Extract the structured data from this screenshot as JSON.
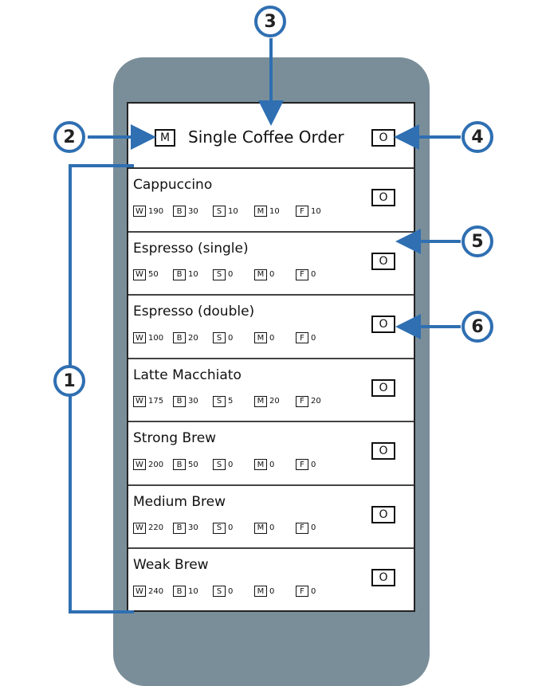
{
  "header": {
    "menu_icon": "M",
    "title": "Single Coffee Order",
    "order_icon": "O"
  },
  "ingredient_keys": [
    "W",
    "B",
    "S",
    "M",
    "F"
  ],
  "drinks": [
    {
      "name": "Cappuccino",
      "values": [
        "190",
        "30",
        "10",
        "10",
        "10"
      ],
      "button": "O"
    },
    {
      "name": "Espresso (single)",
      "values": [
        "50",
        "10",
        "0",
        "0",
        "0"
      ],
      "button": "O"
    },
    {
      "name": "Espresso (double)",
      "values": [
        "100",
        "20",
        "0",
        "0",
        "0"
      ],
      "button": "O"
    },
    {
      "name": "Latte Macchiato",
      "values": [
        "175",
        "30",
        "5",
        "20",
        "20"
      ],
      "button": "O"
    },
    {
      "name": "Strong Brew",
      "values": [
        "200",
        "50",
        "0",
        "0",
        "0"
      ],
      "button": "O"
    },
    {
      "name": "Medium Brew",
      "values": [
        "220",
        "30",
        "0",
        "0",
        "0"
      ],
      "button": "O"
    },
    {
      "name": "Weak Brew",
      "values": [
        "240",
        "10",
        "0",
        "0",
        "0"
      ],
      "button": "O"
    }
  ],
  "callouts": [
    "1",
    "2",
    "3",
    "4",
    "5",
    "6"
  ],
  "colors": {
    "phone": "#7a8e99",
    "callout": "#2f6fb2"
  }
}
